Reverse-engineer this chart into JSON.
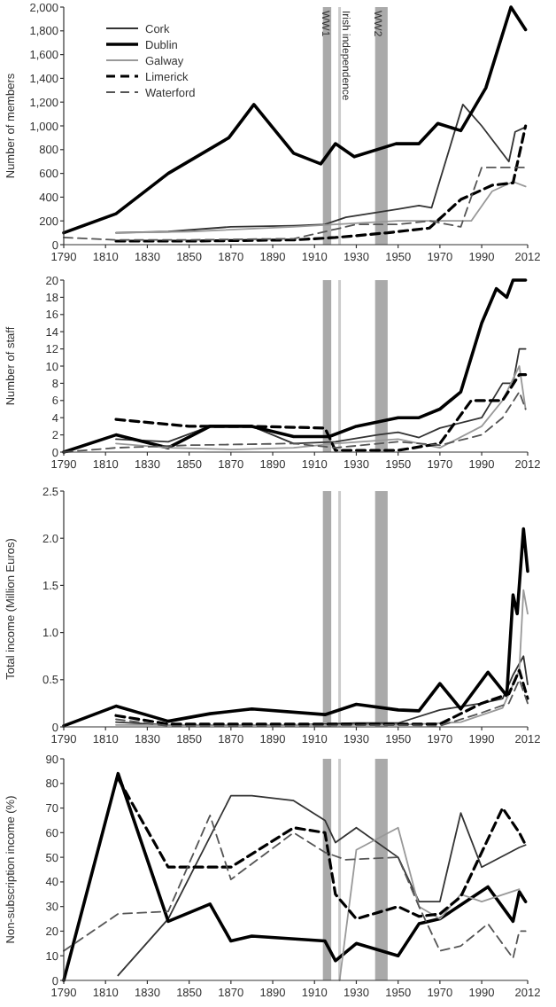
{
  "chart_data": [
    {
      "type": "line",
      "ylabel": "Number of members",
      "xlim": [
        1790,
        2012
      ],
      "xticks": [
        1790,
        1810,
        1830,
        1850,
        1870,
        1890,
        1910,
        1930,
        1950,
        1970,
        1990,
        2012
      ],
      "ylim": [
        0,
        2000
      ],
      "yticks": [
        0,
        200,
        400,
        600,
        800,
        {
          "value": 1000,
          "label": "1,000"
        },
        {
          "value": 1200,
          "label": "1,200"
        },
        {
          "value": 1400,
          "label": "1,400"
        },
        {
          "value": 1600,
          "label": "1,600"
        },
        {
          "value": 1800,
          "label": "1,800"
        },
        {
          "value": 2000,
          "label": "2,000"
        }
      ],
      "legend": "top left",
      "bands": [
        {
          "axis": "x",
          "from": 1914,
          "to": 1918,
          "label": "WW1",
          "color": "#aaaaaa"
        },
        {
          "axis": "x",
          "from": 1939,
          "to": 1945,
          "label": "WW2",
          "color": "#aaaaaa"
        }
      ],
      "ref_lines": [
        {
          "axis": "x",
          "value": 1922,
          "label": "Irish independence",
          "color": "#cccccc"
        }
      ],
      "series": [
        {
          "name": "Cork",
          "color": "#333333",
          "line_style": "solid",
          "x": [
            1815,
            1840,
            1870,
            1900,
            1915,
            1925,
            1950,
            1960,
            1966,
            1981,
            1990,
            2003,
            2006,
            2011
          ],
          "values": [
            100,
            110,
            150,
            160,
            170,
            230,
            300,
            330,
            310,
            1180,
            1000,
            700,
            950,
            990
          ]
        },
        {
          "name": "Dublin",
          "color": "#000000",
          "line_style": "solid",
          "x": [
            1790,
            1815,
            1840,
            1869,
            1881,
            1900,
            1913,
            1920,
            1929,
            1949,
            1960,
            1969,
            1980,
            1992,
            2004,
            2011
          ],
          "values": [
            100,
            260,
            600,
            900,
            1180,
            770,
            680,
            850,
            740,
            850,
            850,
            1020,
            960,
            1320,
            2000,
            1810
          ]
        },
        {
          "name": "Galway",
          "color": "#999999",
          "line_style": "solid",
          "x": [
            1815,
            1850,
            1900,
            1920,
            1950,
            1970,
            1985,
            1995,
            2005,
            2011
          ],
          "values": [
            100,
            110,
            150,
            170,
            200,
            200,
            200,
            450,
            530,
            490
          ]
        },
        {
          "name": "Limerick",
          "color": "#000000",
          "line_style": "dashed",
          "x": [
            1815,
            1850,
            1900,
            1920,
            1945,
            1965,
            1980,
            1995,
            2005,
            2011
          ],
          "values": [
            30,
            30,
            40,
            60,
            100,
            140,
            380,
            500,
            520,
            1000
          ]
        },
        {
          "name": "Waterford",
          "color": "#555555",
          "line_style": "dashed",
          "x": [
            1790,
            1815,
            1850,
            1900,
            1920,
            1930,
            1950,
            1965,
            1980,
            1990,
            2011
          ],
          "values": [
            60,
            40,
            40,
            50,
            130,
            170,
            170,
            200,
            150,
            650,
            650
          ]
        }
      ]
    },
    {
      "type": "line",
      "ylabel": "Number of staff",
      "xlim": [
        1790,
        2012
      ],
      "xticks": [
        1790,
        1810,
        1830,
        1850,
        1870,
        1890,
        1910,
        1930,
        1950,
        1970,
        1990,
        2012
      ],
      "ylim": [
        0,
        20
      ],
      "yticks": [
        0,
        2,
        4,
        6,
        8,
        10,
        12,
        14,
        16,
        18,
        20
      ],
      "bands": [
        {
          "axis": "x",
          "from": 1914,
          "to": 1918,
          "color": "#aaaaaa"
        },
        {
          "axis": "x",
          "from": 1939,
          "to": 1945,
          "color": "#aaaaaa"
        }
      ],
      "ref_lines": [
        {
          "axis": "x",
          "value": 1922,
          "color": "#cccccc"
        }
      ],
      "series": [
        {
          "color": "#333333",
          "line_style": "solid",
          "x": [
            1815,
            1840,
            1860,
            1880,
            1900,
            1920,
            1940,
            1950,
            1960,
            1970,
            1990,
            2000,
            2005,
            2008,
            2011
          ],
          "values": [
            1.5,
            1.2,
            3,
            3,
            1,
            1.2,
            2,
            2.3,
            1.7,
            2.8,
            4,
            8,
            8,
            12,
            12
          ]
        },
        {
          "color": "#000000",
          "line_style": "solid",
          "x": [
            1790,
            1815,
            1840,
            1860,
            1880,
            1900,
            1917,
            1930,
            1950,
            1960,
            1970,
            1980,
            1990,
            1997,
            2002,
            2005,
            2011
          ],
          "values": [
            0,
            2,
            0.5,
            3,
            3,
            1.8,
            1.8,
            3,
            4,
            4,
            5,
            7,
            15,
            19,
            18,
            20,
            20
          ]
        },
        {
          "color": "#999999",
          "line_style": "solid",
          "x": [
            1815,
            1840,
            1870,
            1900,
            1920,
            1950,
            1970,
            1990,
            2000,
            2008,
            2011
          ],
          "values": [
            1,
            0.5,
            0.3,
            0.5,
            1,
            1.5,
            0.5,
            3,
            6,
            10,
            5
          ]
        },
        {
          "color": "#000000",
          "line_style": "dashed",
          "x": [
            1815,
            1850,
            1880,
            1915,
            1920,
            1950,
            1970,
            1985,
            2000,
            2008,
            2011
          ],
          "values": [
            3.8,
            3,
            3,
            2.8,
            0.2,
            0.2,
            1,
            6,
            6,
            9,
            9
          ]
        },
        {
          "color": "#555555",
          "line_style": "dashed",
          "x": [
            1790,
            1815,
            1850,
            1900,
            1920,
            1950,
            1970,
            1990,
            2000,
            2008,
            2011
          ],
          "values": [
            0,
            0.5,
            0.8,
            1,
            0.5,
            1.2,
            0.8,
            2,
            4,
            7,
            5
          ]
        }
      ]
    },
    {
      "type": "line",
      "ylabel": "Total income (Million Euros)",
      "xlim": [
        1790,
        2012
      ],
      "xticks": [
        1790,
        1810,
        1830,
        1850,
        1870,
        1890,
        1910,
        1930,
        1950,
        1970,
        1990,
        2012
      ],
      "ylim": [
        0,
        2.5
      ],
      "yticks": [
        0,
        0.5,
        {
          "value": 1,
          "label": "1.0"
        },
        1.5,
        {
          "value": 2,
          "label": "2.0"
        },
        2.5
      ],
      "bands": [
        {
          "axis": "x",
          "from": 1914,
          "to": 1918,
          "color": "#aaaaaa"
        },
        {
          "axis": "x",
          "from": 1939,
          "to": 1945,
          "color": "#aaaaaa"
        }
      ],
      "ref_lines": [
        {
          "axis": "x",
          "value": 1922,
          "color": "#cccccc"
        }
      ],
      "series": [
        {
          "color": "#333333",
          "line_style": "solid",
          "x": [
            1815,
            1840,
            1900,
            1930,
            1950,
            1970,
            1990,
            2000,
            2005,
            2010,
            2012
          ],
          "values": [
            0.05,
            0.02,
            0.02,
            0.04,
            0.04,
            0.18,
            0.25,
            0.3,
            0.55,
            0.75,
            0.45
          ]
        },
        {
          "color": "#000000",
          "line_style": "solid",
          "x": [
            1790,
            1815,
            1840,
            1860,
            1880,
            1915,
            1930,
            1950,
            1960,
            1970,
            1980,
            1993,
            2002,
            2005,
            2007,
            2010,
            2012
          ],
          "values": [
            0.01,
            0.22,
            0.06,
            0.14,
            0.19,
            0.13,
            0.24,
            0.18,
            0.17,
            0.46,
            0.19,
            0.58,
            0.33,
            1.4,
            1.2,
            2.1,
            1.65
          ]
        },
        {
          "color": "#999999",
          "line_style": "solid",
          "x": [
            1815,
            1900,
            1950,
            1980,
            2000,
            2008,
            2010,
            2012
          ],
          "values": [
            0.02,
            0.02,
            0.02,
            0.05,
            0.2,
            0.6,
            1.45,
            1.2
          ]
        },
        {
          "color": "#000000",
          "line_style": "dashed",
          "x": [
            1815,
            1840,
            1900,
            1950,
            1970,
            1990,
            2003,
            2008,
            2012
          ],
          "values": [
            0.12,
            0.03,
            0.03,
            0.03,
            0.03,
            0.25,
            0.35,
            0.6,
            0.3
          ]
        },
        {
          "color": "#555555",
          "line_style": "dashed",
          "x": [
            1815,
            1840,
            1900,
            1950,
            1970,
            1990,
            2003,
            2008,
            2012
          ],
          "values": [
            0.08,
            0.01,
            0.01,
            0.02,
            0.01,
            0.15,
            0.25,
            0.5,
            0.25
          ]
        }
      ]
    },
    {
      "type": "line",
      "ylabel": "Non-subscription income (%)",
      "xlim": [
        1790,
        2012
      ],
      "xticks": [
        1790,
        1810,
        1830,
        1850,
        1870,
        1890,
        1910,
        1930,
        1950,
        1970,
        1990,
        2012
      ],
      "ylim": [
        0,
        90
      ],
      "yticks": [
        0,
        10,
        20,
        30,
        40,
        50,
        60,
        70,
        80,
        90
      ],
      "bands": [
        {
          "axis": "x",
          "from": 1914,
          "to": 1918,
          "color": "#aaaaaa"
        },
        {
          "axis": "x",
          "from": 1939,
          "to": 1945,
          "color": "#aaaaaa"
        }
      ],
      "ref_lines": [
        {
          "axis": "x",
          "value": 1922,
          "color": "#cccccc"
        }
      ],
      "series": [
        {
          "color": "#333333",
          "line_style": "solid",
          "x": [
            1816,
            1840,
            1870,
            1880,
            1900,
            1915,
            1920,
            1930,
            1950,
            1960,
            1970,
            1980,
            1990,
            2008,
            2011
          ],
          "values": [
            2,
            25,
            75,
            75,
            73,
            65,
            56,
            62,
            50,
            32,
            32,
            68,
            46,
            54,
            55
          ]
        },
        {
          "color": "#000000",
          "line_style": "solid",
          "x": [
            1790,
            1816,
            1840,
            1860,
            1870,
            1880,
            1915,
            1920,
            1930,
            1950,
            1960,
            1970,
            1993,
            2005,
            2008,
            2011
          ],
          "values": [
            0,
            84,
            24,
            31,
            16,
            18,
            16,
            8,
            15,
            10,
            23,
            25,
            38,
            24,
            36,
            32
          ]
        },
        {
          "color": "#999999",
          "line_style": "solid",
          "x": [
            1922,
            1930,
            1950,
            1960,
            1970,
            1980,
            1990,
            2008
          ],
          "values": [
            0,
            53,
            62,
            30,
            25,
            35,
            32,
            37
          ]
        },
        {
          "color": "#000000",
          "line_style": "dashed",
          "x": [
            1816,
            1840,
            1870,
            1900,
            1915,
            1920,
            1930,
            1950,
            1960,
            1970,
            1980,
            2000,
            2008,
            2011
          ],
          "values": [
            82,
            46,
            46,
            62,
            60,
            35,
            25,
            30,
            26,
            27,
            34,
            70,
            60,
            55
          ]
        },
        {
          "color": "#555555",
          "line_style": "dashed",
          "x": [
            1790,
            1816,
            1840,
            1860,
            1870,
            1900,
            1915,
            1925,
            1950,
            1960,
            1970,
            1980,
            1993,
            2005,
            2008,
            2011
          ],
          "values": [
            12,
            27,
            28,
            67,
            41,
            60,
            52,
            49,
            50,
            30,
            12,
            14,
            23,
            9,
            20,
            20
          ]
        }
      ]
    }
  ]
}
